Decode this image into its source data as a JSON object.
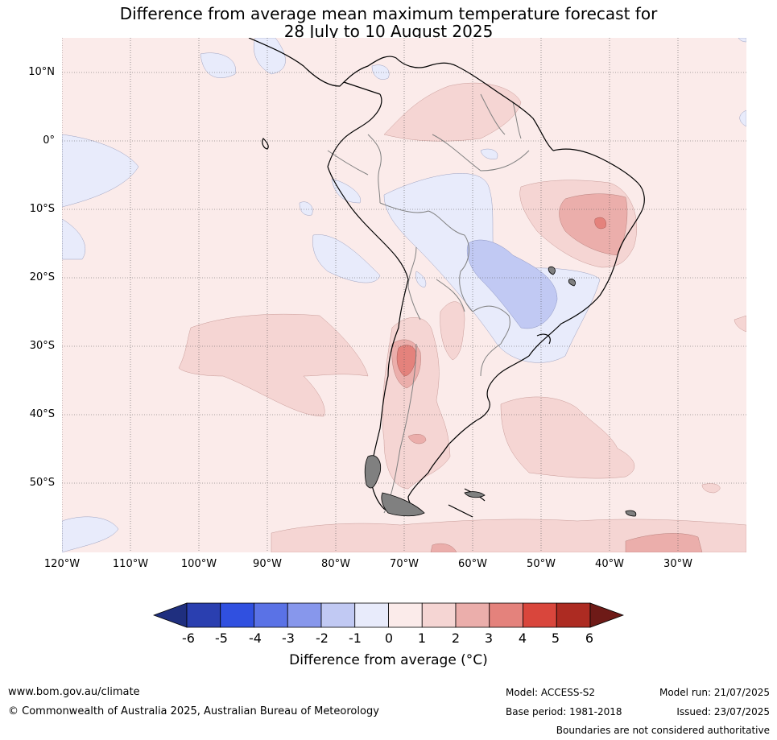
{
  "title": {
    "line1": "Difference from average mean maximum temperature forecast for",
    "line2": "28 July to 10 August 2025"
  },
  "map": {
    "lat_labels": [
      "10°N",
      "0°",
      "10°S",
      "20°S",
      "30°S",
      "40°S",
      "50°S"
    ],
    "lon_labels": [
      "120°W",
      "110°W",
      "100°W",
      "90°W",
      "80°W",
      "70°W",
      "60°W",
      "50°W",
      "40°W",
      "30°W"
    ],
    "colors": {
      "neutral_warm": "#fbebea",
      "warm_1_2": "#f5d5d3",
      "warm_2_3": "#ebaeab",
      "warm_3_4": "#e4827c",
      "cool_0_1": "#e8ebfb",
      "cool_1_2": "#c1c9f3",
      "coast": "#000000",
      "borders": "#808080",
      "grid": "#555555"
    }
  },
  "colorbar": {
    "ticks": [
      "-6",
      "-5",
      "-4",
      "-3",
      "-2",
      "-1",
      "0",
      "1",
      "2",
      "3",
      "4",
      "5",
      "6"
    ],
    "colors": [
      "#1f2f7f",
      "#2a3fb0",
      "#3050e0",
      "#5a72e6",
      "#8797ec",
      "#c1c9f3",
      "#e8ebfb",
      "#fbebea",
      "#f5d5d3",
      "#ebaeab",
      "#e4827c",
      "#d9463c",
      "#ad2b22",
      "#6e1a17"
    ],
    "label": "Difference from average (°C)"
  },
  "footer": {
    "website": "www.bom.gov.au/climate",
    "copyright": "© Commonwealth of Australia 2025, Australian Bureau of Meteorology",
    "model": "Model: ACCESS-S2",
    "base_period": "Base period: 1981-2018",
    "model_run": "Model run: 21/07/2025",
    "issued": "Issued: 23/07/2025",
    "disclaimer": "Boundaries are not considered authoritative"
  }
}
